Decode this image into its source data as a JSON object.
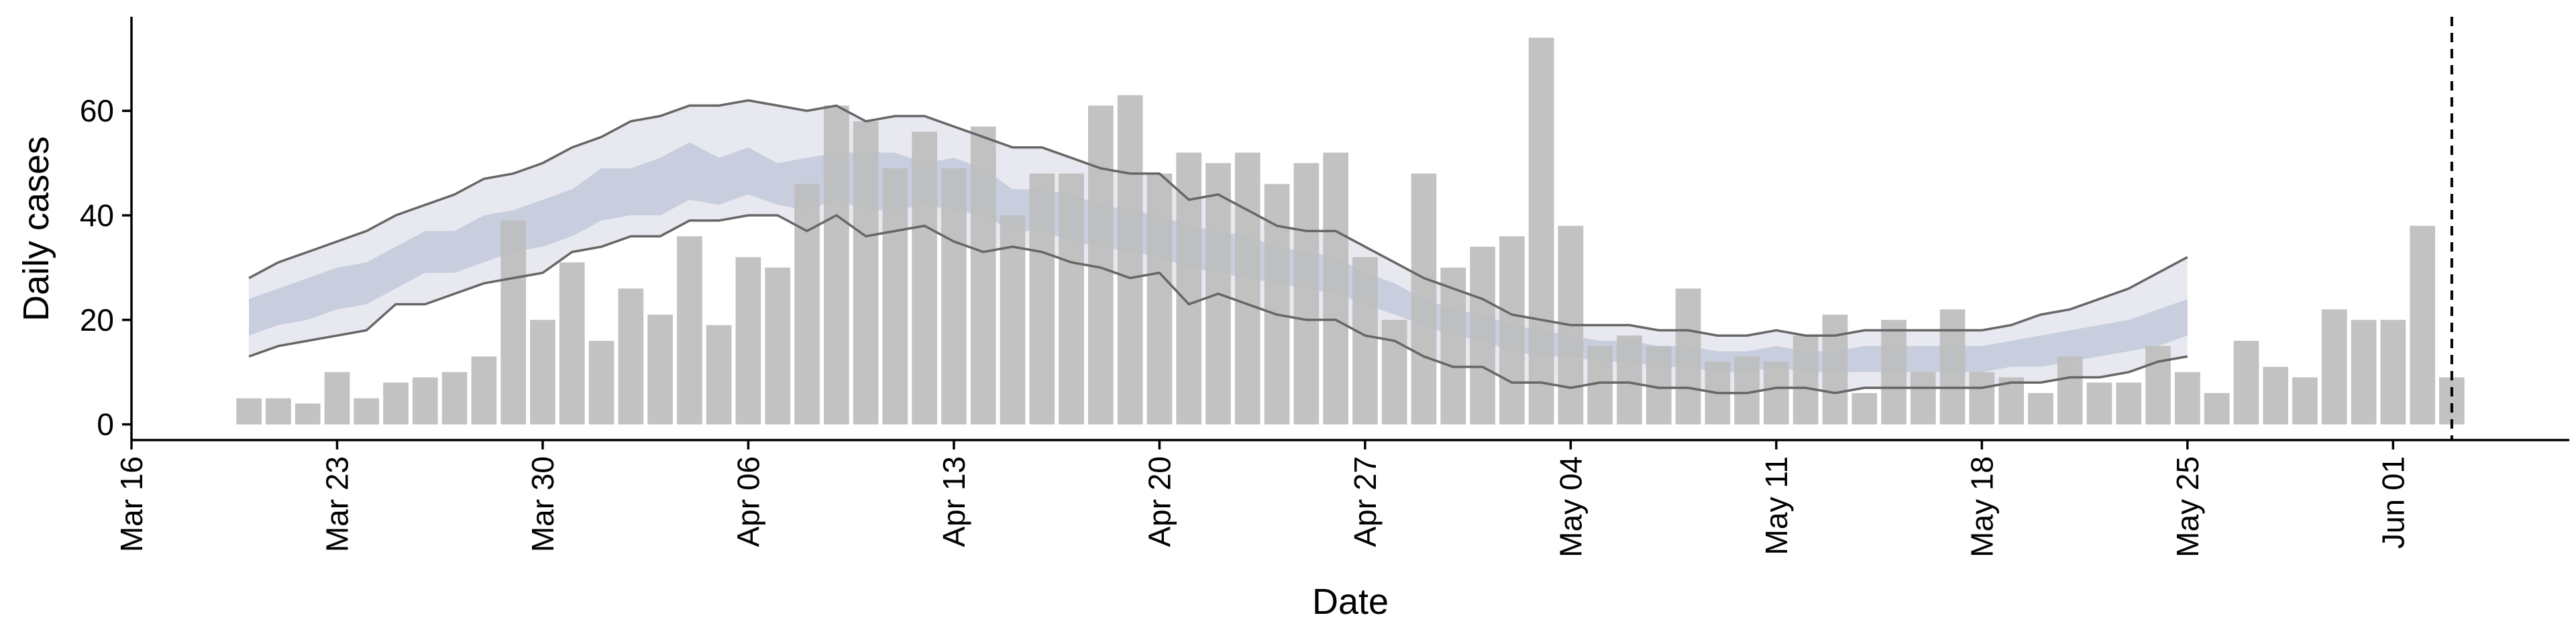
{
  "chart_data": {
    "type": "bar",
    "xlabel": "Date",
    "ylabel": "Daily cases",
    "xlim": [
      "2020-03-16",
      "2020-06-07"
    ],
    "ylim": [
      -3,
      78
    ],
    "x_ticks": [
      "2020-03-16",
      "2020-03-23",
      "2020-03-30",
      "2020-04-06",
      "2020-04-13",
      "2020-04-20",
      "2020-04-27",
      "2020-05-04",
      "2020-05-11",
      "2020-05-18",
      "2020-05-25",
      "2020-06-01"
    ],
    "x_tick_labels": [
      "Mar 16",
      "Mar 23",
      "Mar 30",
      "Apr 06",
      "Apr 13",
      "Apr 20",
      "Apr 27",
      "May 04",
      "May 11",
      "May 18",
      "May 25",
      "Jun 01"
    ],
    "y_ticks": [
      0,
      20,
      40,
      60
    ],
    "grid": false,
    "start_date": "2020-03-20",
    "bars": {
      "color": "#bdbdbd",
      "values": [
        5,
        5,
        4,
        10,
        5,
        8,
        9,
        10,
        13,
        39,
        20,
        31,
        16,
        26,
        21,
        36,
        19,
        32,
        30,
        46,
        61,
        58,
        49,
        56,
        49,
        57,
        40,
        48,
        48,
        61,
        63,
        48,
        52,
        50,
        52,
        46,
        50,
        52,
        32,
        20,
        48,
        30,
        34,
        36,
        74,
        38,
        15,
        17,
        15,
        26,
        12,
        13,
        12,
        17,
        21,
        6,
        20,
        10,
        22,
        10,
        9,
        6,
        13,
        8,
        8,
        15,
        10,
        6,
        16,
        11,
        9,
        22,
        20,
        20,
        38,
        9
      ]
    },
    "band_outer": {
      "color": "#e8e9f0",
      "upper": [
        28,
        31,
        33,
        35,
        37,
        40,
        42,
        44,
        47,
        48,
        50,
        53,
        55,
        58,
        59,
        61,
        61,
        62,
        61,
        60,
        61,
        58,
        59,
        59,
        57,
        55,
        53,
        53,
        51,
        49,
        48,
        48,
        43,
        44,
        41,
        38,
        37,
        37,
        34,
        31,
        28,
        26,
        24,
        21,
        20,
        19,
        19,
        19,
        18,
        18,
        17,
        17,
        18,
        17,
        17,
        18,
        18,
        18,
        18,
        18,
        19,
        21,
        22,
        24,
        26,
        29,
        32
      ],
      "lower": [
        13,
        15,
        16,
        17,
        18,
        23,
        23,
        25,
        27,
        28,
        29,
        33,
        34,
        36,
        36,
        39,
        39,
        40,
        40,
        37,
        40,
        36,
        37,
        38,
        35,
        33,
        34,
        33,
        31,
        30,
        28,
        29,
        23,
        25,
        23,
        21,
        20,
        20,
        17,
        16,
        13,
        11,
        11,
        8,
        8,
        7,
        8,
        8,
        7,
        7,
        6,
        6,
        7,
        7,
        6,
        7,
        7,
        7,
        7,
        7,
        8,
        8,
        9,
        9,
        10,
        12,
        13
      ]
    },
    "band_inner": {
      "color": "#c5cbdd",
      "upper": [
        24,
        26,
        28,
        30,
        31,
        34,
        37,
        37,
        40,
        41,
        43,
        45,
        49,
        49,
        51,
        54,
        51,
        53,
        50,
        51,
        52,
        52,
        52,
        50,
        51,
        49,
        45,
        45,
        44,
        42,
        41,
        40,
        38,
        37,
        36,
        34,
        33,
        32,
        29,
        27,
        24,
        22,
        21,
        19,
        18,
        17,
        16,
        16,
        15,
        15,
        14,
        14,
        15,
        14,
        14,
        15,
        15,
        15,
        15,
        15,
        16,
        17,
        18,
        19,
        20,
        22,
        24
      ],
      "lower": [
        17,
        19,
        20,
        22,
        23,
        26,
        29,
        29,
        31,
        33,
        34,
        36,
        39,
        40,
        40,
        43,
        42,
        44,
        42,
        41,
        43,
        41,
        41,
        42,
        41,
        40,
        37,
        37,
        35,
        34,
        33,
        32,
        30,
        29,
        28,
        27,
        26,
        25,
        23,
        21,
        19,
        17,
        16,
        14,
        13,
        13,
        12,
        12,
        11,
        11,
        10,
        10,
        11,
        10,
        10,
        10,
        10,
        10,
        10,
        10,
        11,
        11,
        12,
        13,
        14,
        15,
        17
      ]
    },
    "line_color": "#666666",
    "vline": {
      "x": "2020-06-03",
      "style": "dashed",
      "color": "#000000"
    }
  }
}
